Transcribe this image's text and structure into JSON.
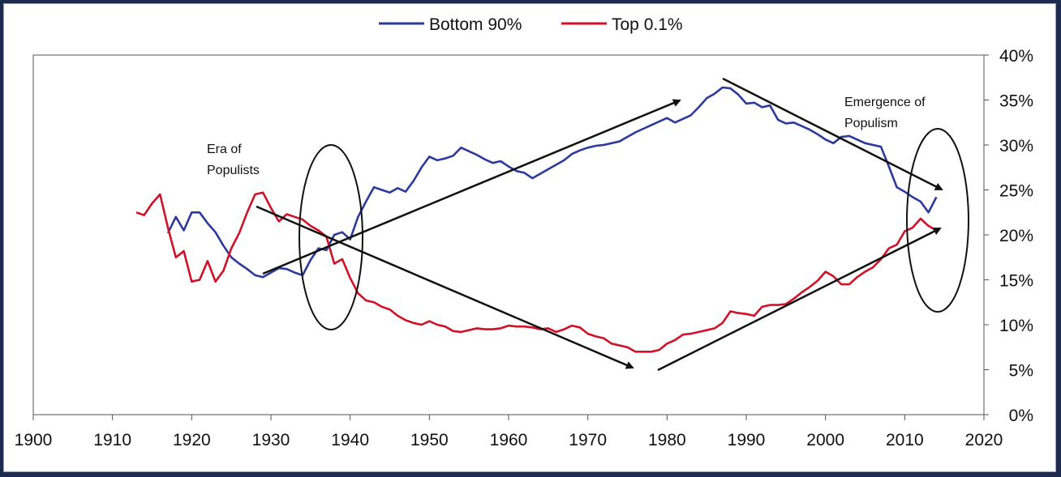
{
  "chart_data": {
    "type": "line",
    "title": "",
    "xlabel": "",
    "ylabel": "",
    "xlim": [
      1900,
      2020
    ],
    "ylim": [
      0,
      40
    ],
    "x_ticks": [
      "1900",
      "1910",
      "1920",
      "1930",
      "1940",
      "1950",
      "1960",
      "1970",
      "1980",
      "1990",
      "2000",
      "2010",
      "2020"
    ],
    "y_ticks": [
      "0%",
      "5%",
      "10%",
      "15%",
      "20%",
      "25%",
      "30%",
      "35%",
      "40%"
    ],
    "y_axis_side": "right",
    "grid": false,
    "legend_position": "top-center",
    "series": [
      {
        "name": "Bottom 90%",
        "color": "#2b3a9c",
        "x": [
          1917,
          1918,
          1919,
          1920,
          1921,
          1922,
          1923,
          1924,
          1925,
          1926,
          1927,
          1928,
          1929,
          1930,
          1931,
          1932,
          1933,
          1934,
          1935,
          1936,
          1937,
          1938,
          1939,
          1940,
          1941,
          1942,
          1943,
          1944,
          1945,
          1946,
          1947,
          1948,
          1949,
          1950,
          1951,
          1952,
          1953,
          1954,
          1955,
          1956,
          1957,
          1958,
          1959,
          1960,
          1961,
          1962,
          1963,
          1964,
          1965,
          1966,
          1967,
          1968,
          1969,
          1970,
          1971,
          1972,
          1973,
          1974,
          1975,
          1976,
          1977,
          1978,
          1979,
          1980,
          1981,
          1982,
          1983,
          1984,
          1985,
          1986,
          1987,
          1988,
          1989,
          1990,
          1991,
          1992,
          1993,
          1994,
          1995,
          1996,
          1997,
          1998,
          1999,
          2000,
          2001,
          2002,
          2003,
          2004,
          2005,
          2006,
          2007,
          2008,
          2009,
          2010,
          2011,
          2012,
          2013,
          2014
        ],
        "values": [
          20.2,
          22.0,
          20.5,
          22.5,
          22.5,
          21.3,
          20.3,
          18.8,
          17.5,
          16.8,
          16.2,
          15.5,
          15.3,
          15.8,
          16.3,
          16.2,
          15.8,
          15.5,
          17.2,
          18.5,
          18.3,
          20.0,
          20.3,
          19.5,
          22.0,
          23.7,
          25.3,
          25.0,
          24.7,
          25.2,
          24.8,
          26.0,
          27.5,
          28.7,
          28.3,
          28.5,
          28.8,
          29.7,
          29.3,
          28.9,
          28.4,
          28.0,
          28.2,
          27.6,
          27.1,
          26.9,
          26.3,
          26.8,
          27.3,
          27.8,
          28.3,
          29.0,
          29.4,
          29.7,
          29.9,
          30.0,
          30.2,
          30.4,
          30.9,
          31.4,
          31.8,
          32.2,
          32.6,
          33.0,
          32.5,
          32.9,
          33.3,
          34.2,
          35.2,
          35.7,
          36.4,
          36.3,
          35.6,
          34.6,
          34.7,
          34.2,
          34.4,
          32.8,
          32.4,
          32.5,
          32.1,
          31.7,
          31.2,
          30.6,
          30.2,
          30.9,
          31.0,
          30.6,
          30.2,
          30.0,
          29.8,
          27.6,
          25.3,
          24.8,
          24.2,
          23.7,
          22.5,
          24.2
        ]
      },
      {
        "name": "Top 0.1%",
        "color": "#d01127",
        "x": [
          1913,
          1914,
          1915,
          1916,
          1917,
          1918,
          1919,
          1920,
          1921,
          1922,
          1923,
          1924,
          1925,
          1926,
          1927,
          1928,
          1929,
          1930,
          1931,
          1932,
          1933,
          1934,
          1935,
          1936,
          1937,
          1938,
          1939,
          1940,
          1941,
          1942,
          1943,
          1944,
          1945,
          1946,
          1947,
          1948,
          1949,
          1950,
          1951,
          1952,
          1953,
          1954,
          1955,
          1956,
          1957,
          1958,
          1959,
          1960,
          1961,
          1962,
          1963,
          1964,
          1965,
          1966,
          1967,
          1968,
          1969,
          1970,
          1971,
          1972,
          1973,
          1974,
          1975,
          1976,
          1977,
          1978,
          1979,
          1980,
          1981,
          1982,
          1983,
          1984,
          1985,
          1986,
          1987,
          1988,
          1989,
          1990,
          1991,
          1992,
          1993,
          1994,
          1995,
          1996,
          1997,
          1998,
          1999,
          2000,
          2001,
          2002,
          2003,
          2004,
          2005,
          2006,
          2007,
          2008,
          2009,
          2010,
          2011,
          2012,
          2013,
          2014
        ],
        "values": [
          22.5,
          22.2,
          23.5,
          24.5,
          20.8,
          17.5,
          18.2,
          14.8,
          15.0,
          17.1,
          14.8,
          16.0,
          18.5,
          20.2,
          22.5,
          24.5,
          24.7,
          23.0,
          21.5,
          22.3,
          22.0,
          21.7,
          21.0,
          20.5,
          19.8,
          16.8,
          17.3,
          15.2,
          13.5,
          12.7,
          12.5,
          12.0,
          11.7,
          11.0,
          10.5,
          10.2,
          10.0,
          10.4,
          10.0,
          9.8,
          9.3,
          9.2,
          9.4,
          9.6,
          9.5,
          9.5,
          9.6,
          9.9,
          9.8,
          9.8,
          9.7,
          9.5,
          9.6,
          9.2,
          9.5,
          9.9,
          9.7,
          9.0,
          8.7,
          8.5,
          7.9,
          7.7,
          7.5,
          7.0,
          7.0,
          7.0,
          7.2,
          7.9,
          8.3,
          8.9,
          9.0,
          9.2,
          9.4,
          9.6,
          10.2,
          11.5,
          11.3,
          11.2,
          11.0,
          12.0,
          12.2,
          12.2,
          12.3,
          12.9,
          13.6,
          14.2,
          14.9,
          15.9,
          15.4,
          14.5,
          14.5,
          15.3,
          15.9,
          16.4,
          17.3,
          18.5,
          18.9,
          20.4,
          20.8,
          21.8,
          21.0,
          20.5
        ]
      }
    ],
    "annotations": [
      {
        "lines": [
          "Era of",
          "Populists"
        ]
      },
      {
        "lines": [
          "Emergence of",
          "Populism"
        ]
      }
    ]
  }
}
